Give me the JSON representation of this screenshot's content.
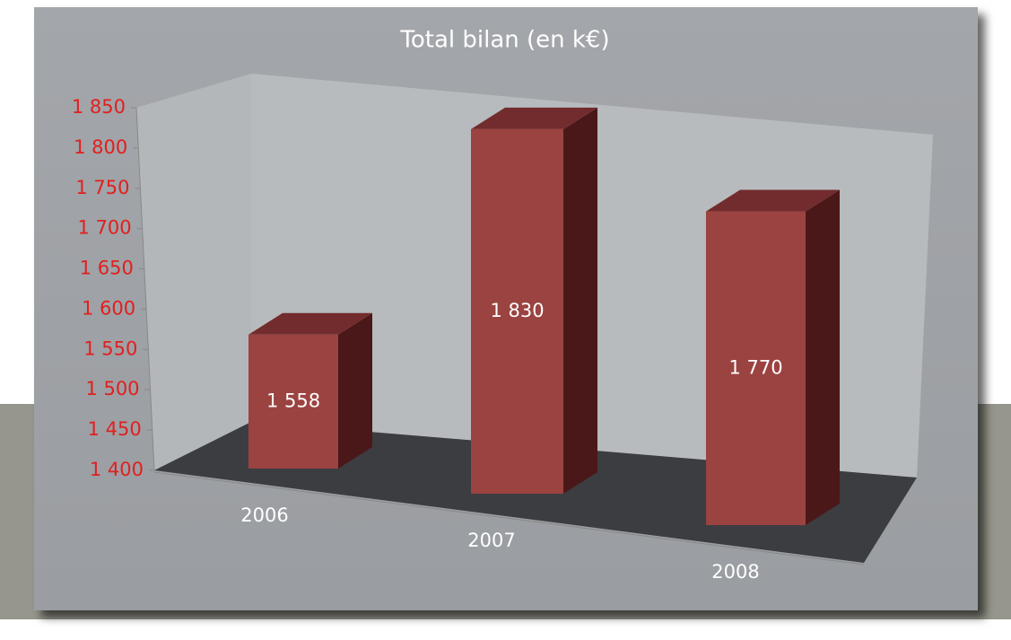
{
  "chart_data": {
    "type": "bar3d",
    "title": "Total bilan (en k€)",
    "categories": [
      "2006",
      "2007",
      "2008"
    ],
    "values": [
      1558,
      1830,
      1770
    ],
    "value_labels": [
      "1 558",
      "1 830",
      "1 770"
    ],
    "color": "#9b4341",
    "ylim": [
      1400,
      1850
    ],
    "yticks": [
      {
        "value": 1400,
        "label": "1 400"
      },
      {
        "value": 1450,
        "label": "1 450"
      },
      {
        "value": 1500,
        "label": "1 500"
      },
      {
        "value": 1550,
        "label": "1 550"
      },
      {
        "value": 1600,
        "label": "1 600"
      },
      {
        "value": 1650,
        "label": "1 650"
      },
      {
        "value": 1700,
        "label": "1 700"
      },
      {
        "value": 1750,
        "label": "1 750"
      },
      {
        "value": 1800,
        "label": "1 800"
      },
      {
        "value": 1850,
        "label": "1 850"
      }
    ],
    "tick_color": "#e02020"
  }
}
